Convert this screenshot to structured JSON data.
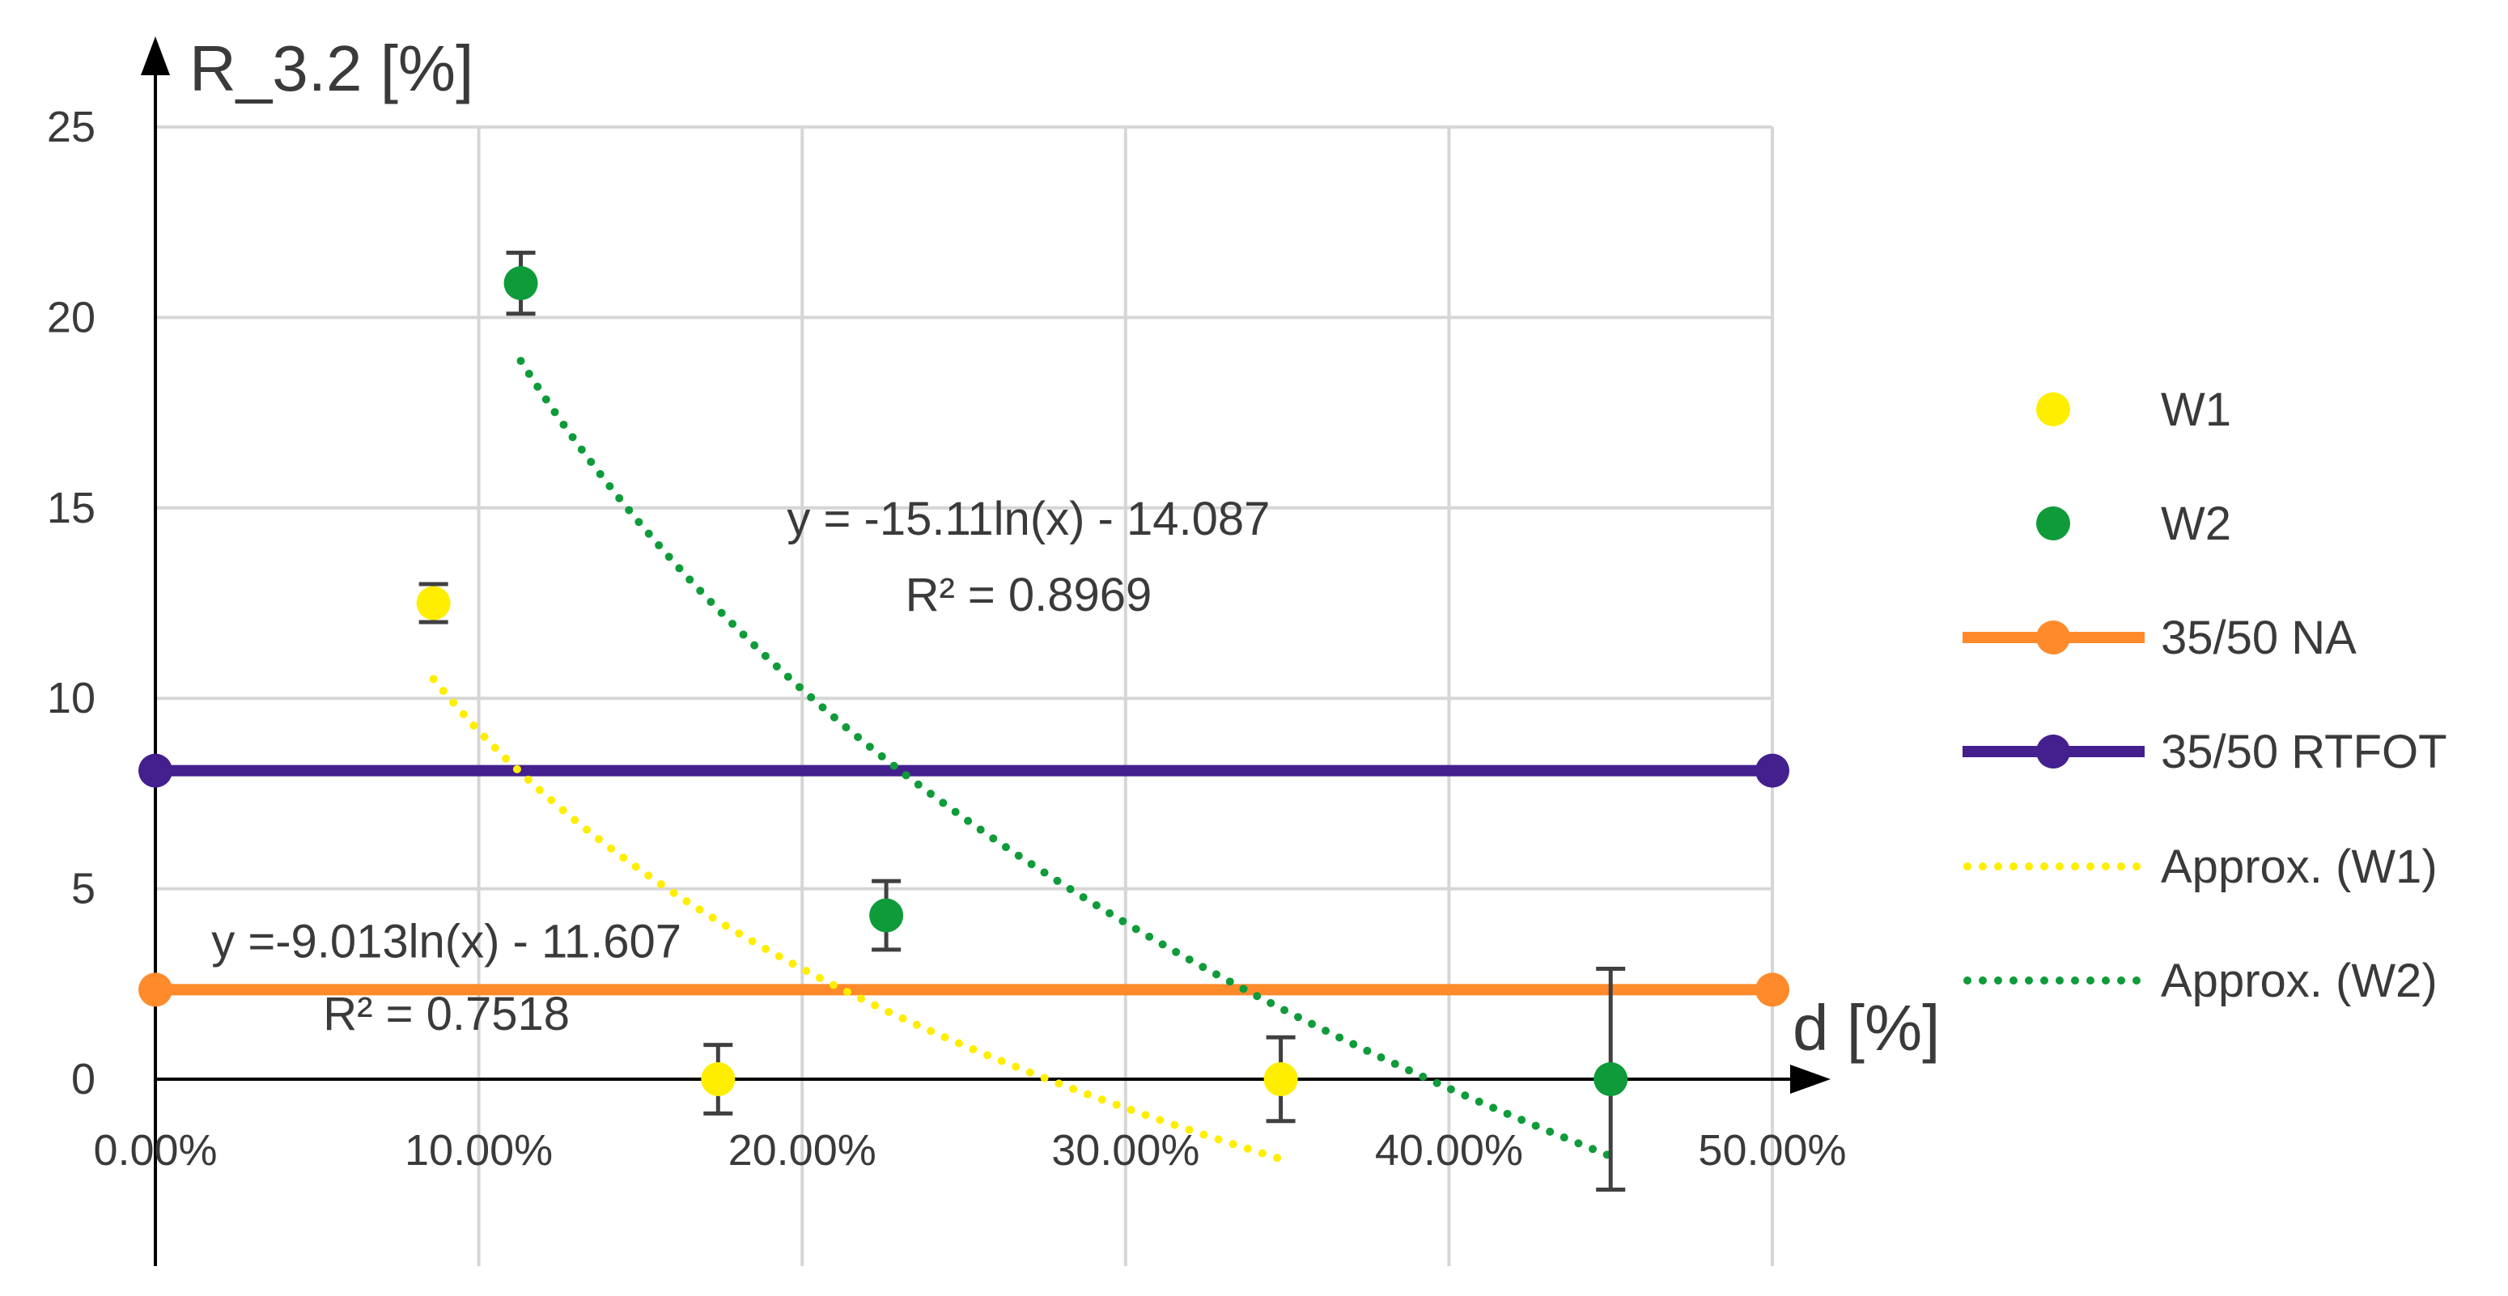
{
  "chart_data": {
    "type": "scatter",
    "title": "",
    "ylabel": "R_3.2 [%]",
    "xlabel": "d [%]",
    "xlim": [
      0,
      50
    ],
    "ylim": [
      -5,
      25
    ],
    "grid": true,
    "legend_position": "right",
    "x_ticks": [
      {
        "value": 0,
        "label": "0.00%"
      },
      {
        "value": 10,
        "label": "10.00%"
      },
      {
        "value": 20,
        "label": "20.00%"
      },
      {
        "value": 30,
        "label": "30.00%"
      },
      {
        "value": 40,
        "label": "40.00%"
      },
      {
        "value": 50,
        "label": "50.00%"
      }
    ],
    "y_ticks": [
      {
        "value": 0,
        "label": "0"
      },
      {
        "value": 5,
        "label": "5"
      },
      {
        "value": 10,
        "label": "10"
      },
      {
        "value": 15,
        "label": "15"
      },
      {
        "value": 20,
        "label": "20"
      },
      {
        "value": 25,
        "label": "25"
      }
    ],
    "series": [
      {
        "name": "W1",
        "kind": "scatter",
        "color": "#ffee00",
        "points": [
          {
            "x": 8.6,
            "y": 12.5,
            "err": 0.5
          },
          {
            "x": 17.4,
            "y": 0,
            "err": 0.9
          },
          {
            "x": 34.8,
            "y": 0,
            "err": 1.1
          }
        ]
      },
      {
        "name": "W2",
        "kind": "scatter",
        "color": "#0f9b3a",
        "points": [
          {
            "x": 11.3,
            "y": 20.9,
            "err": 0.8
          },
          {
            "x": 22.6,
            "y": 4.3,
            "err": 0.9
          },
          {
            "x": 45.0,
            "y": 0,
            "err": 2.9
          }
        ]
      },
      {
        "name": "35/50 NA",
        "kind": "line",
        "color": "#ff8a2b",
        "points": [
          {
            "x": 0,
            "y": 2.35
          },
          {
            "x": 50,
            "y": 2.35
          }
        ]
      },
      {
        "name": "35/50 RTFOT",
        "kind": "line",
        "color": "#43208e",
        "points": [
          {
            "x": 0,
            "y": 8.1
          },
          {
            "x": 50,
            "y": 8.1
          }
        ]
      },
      {
        "name": "Approx. (W1)",
        "kind": "trend",
        "color": "#ffee00",
        "formula": {
          "a": -9.013,
          "b": -11.607
        },
        "x_range": [
          8.6,
          34.8
        ]
      },
      {
        "name": "Approx. (W2)",
        "kind": "trend",
        "color": "#0f9b3a",
        "formula": {
          "a": -15.11,
          "b": -14.087
        },
        "x_range": [
          11.3,
          45.0
        ]
      }
    ],
    "annotations": [
      {
        "text": "y = -15.11ln(x) - 14.087",
        "x": 27.0,
        "y": 14.3
      },
      {
        "text": "R² = 0.8969",
        "x": 27.0,
        "y": 12.3
      },
      {
        "text": "y =-9.013ln(x) - 11.607",
        "x": 9.0,
        "y": 3.2
      },
      {
        "text": "R² = 0.7518",
        "x": 9.0,
        "y": 1.3
      }
    ]
  }
}
